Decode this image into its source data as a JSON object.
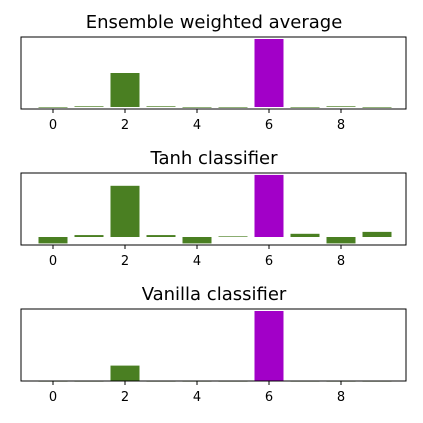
{
  "chart_data": [
    {
      "type": "bar",
      "title": "Ensemble weighted average",
      "categories": [
        0,
        1,
        2,
        3,
        4,
        5,
        6,
        7,
        8,
        9
      ],
      "values": [
        0.0,
        0.01,
        0.5,
        0.01,
        0.0,
        0.0,
        1.0,
        0.0,
        0.01,
        0.0
      ],
      "highlight_index": 6,
      "xticks": [
        0,
        2,
        4,
        6,
        8
      ],
      "xlabel": "",
      "ylabel": ""
    },
    {
      "type": "bar",
      "title": "Tanh classifier",
      "categories": [
        0,
        1,
        2,
        3,
        4,
        5,
        6,
        7,
        8,
        9
      ],
      "values": [
        -0.1,
        0.03,
        0.8,
        0.03,
        -0.1,
        0.01,
        0.97,
        0.05,
        -0.1,
        0.08
      ],
      "highlight_index": 6,
      "xticks": [
        0,
        2,
        4,
        6,
        8
      ],
      "xlabel": "",
      "ylabel": ""
    },
    {
      "type": "bar",
      "title": "Vanilla classifier",
      "categories": [
        0,
        1,
        2,
        3,
        4,
        5,
        6,
        7,
        8,
        9
      ],
      "values": [
        0.0,
        0.0,
        0.22,
        0.0,
        0.0,
        0.0,
        1.0,
        0.0,
        0.0,
        0.0
      ],
      "highlight_index": 6,
      "xticks": [
        0,
        2,
        4,
        6,
        8
      ],
      "xlabel": "",
      "ylabel": ""
    }
  ],
  "colors": {
    "bar": "#4a7f22",
    "highlight": "#a200c8",
    "axis": "#000000"
  }
}
